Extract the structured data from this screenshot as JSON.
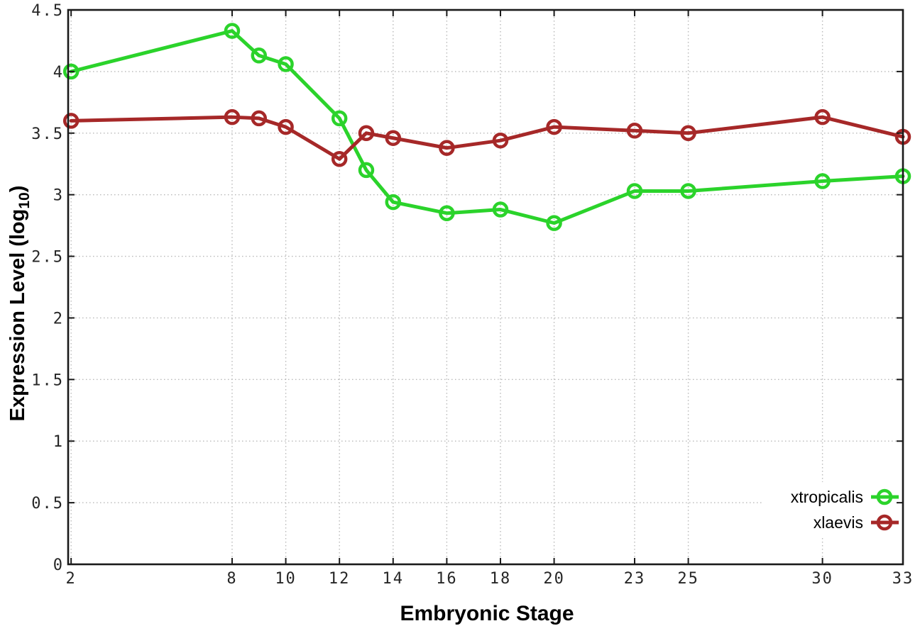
{
  "chart_data": {
    "type": "line",
    "title": "",
    "xlabel": "Embryonic Stage",
    "ylabel": {
      "main": "Expression Level (log",
      "sub": "10",
      "suffix": ")"
    },
    "x": [
      2,
      8,
      9,
      10,
      12,
      13,
      14,
      16,
      18,
      20,
      23,
      25,
      30,
      33
    ],
    "series": [
      {
        "name": "xtropicalis",
        "color": "#2bd32b",
        "marker": "open-circle",
        "values": [
          4.0,
          4.33,
          4.13,
          4.06,
          3.62,
          3.2,
          2.94,
          2.85,
          2.88,
          2.77,
          3.03,
          3.03,
          3.11,
          3.15
        ]
      },
      {
        "name": "xlaevis",
        "color": "#a62828",
        "marker": "open-circle",
        "values": [
          3.6,
          3.63,
          3.62,
          3.55,
          3.29,
          3.5,
          3.46,
          3.38,
          3.44,
          3.55,
          3.52,
          3.5,
          3.63,
          3.47
        ]
      }
    ],
    "xlim": [
      1.89,
      33
    ],
    "ylim": [
      0,
      4.5
    ],
    "xticks": [
      2,
      8,
      10,
      12,
      14,
      16,
      18,
      20,
      23,
      25,
      30,
      33
    ],
    "xtick_labels": [
      "2",
      "8",
      "10",
      "12",
      "14",
      "16",
      "18",
      "20",
      "23",
      "25",
      "30",
      "33"
    ],
    "yticks": [
      0,
      0.5,
      1,
      1.5,
      2,
      2.5,
      3,
      3.5,
      4,
      4.5
    ],
    "ytick_labels": [
      "0",
      "0.5",
      "1",
      "1.5",
      "2",
      "2.5",
      "3",
      "3.5",
      "4",
      "4.5"
    ],
    "grid": true,
    "legend_position": "inside-bottom-right",
    "legend_entries": [
      "xtropicalis",
      "xlaevis"
    ],
    "colors": {
      "background": "#ffffff",
      "border": "#1a1a1a",
      "grid": "#b9b9b9",
      "tick_label": "#262626",
      "axis_title": "#000000",
      "legend_text": "#000000"
    }
  }
}
